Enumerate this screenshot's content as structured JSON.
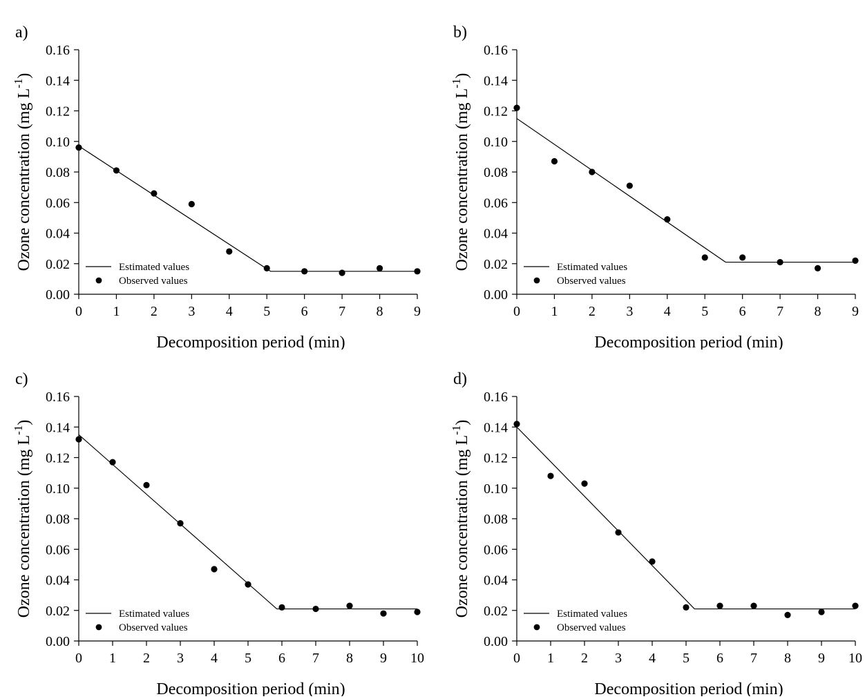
{
  "chart_data": [
    {
      "type": "line",
      "panel_label": "a)",
      "xlabel": "Decomposition period (min)",
      "ylabel": "Ozone concentration (mg L",
      "ylabel_exponent": "-1",
      "ylabel_suffix": ")",
      "xlim": [
        0,
        9
      ],
      "ylim": [
        0,
        0.16
      ],
      "xticks": [
        "0",
        "1",
        "2",
        "3",
        "4",
        "5",
        "6",
        "7",
        "8",
        "9"
      ],
      "yticks": [
        "0.00",
        "0.02",
        "0.04",
        "0.06",
        "0.08",
        "0.10",
        "0.12",
        "0.14",
        "0.16"
      ],
      "legend_position": "bottom-left",
      "series": [
        {
          "name": "Estimated values",
          "style": "line",
          "x": [
            0,
            5.1,
            9
          ],
          "y": [
            0.097,
            0.015,
            0.015
          ]
        },
        {
          "name": "Observed values",
          "style": "markers",
          "x": [
            0,
            1,
            2,
            3,
            4,
            5,
            6,
            7,
            8,
            9
          ],
          "y": [
            0.096,
            0.081,
            0.066,
            0.059,
            0.028,
            0.017,
            0.015,
            0.014,
            0.017,
            0.015
          ]
        }
      ]
    },
    {
      "type": "line",
      "panel_label": "b)",
      "xlabel": "Decomposition period (min)",
      "ylabel": "Ozone concentration (mg L",
      "ylabel_exponent": "-1",
      "ylabel_suffix": ")",
      "xlim": [
        0,
        9
      ],
      "ylim": [
        0,
        0.16
      ],
      "xticks": [
        "0",
        "1",
        "2",
        "3",
        "4",
        "5",
        "6",
        "7",
        "8",
        "9"
      ],
      "yticks": [
        "0.00",
        "0.02",
        "0.04",
        "0.06",
        "0.08",
        "0.10",
        "0.12",
        "0.14",
        "0.16"
      ],
      "legend_position": "bottom-left",
      "series": [
        {
          "name": "Estimated values",
          "style": "line",
          "x": [
            0,
            5.55,
            9
          ],
          "y": [
            0.115,
            0.021,
            0.021
          ]
        },
        {
          "name": "Observed values",
          "style": "markers",
          "x": [
            0,
            1,
            2,
            3,
            4,
            5,
            6,
            7,
            8,
            9
          ],
          "y": [
            0.122,
            0.087,
            0.08,
            0.071,
            0.049,
            0.024,
            0.024,
            0.021,
            0.017,
            0.022
          ]
        }
      ]
    },
    {
      "type": "line",
      "panel_label": "c)",
      "xlabel": "Decomposition period (min)",
      "ylabel": "Ozone concentration (mg L",
      "ylabel_exponent": "-1",
      "ylabel_suffix": ")",
      "xlim": [
        0,
        10
      ],
      "ylim": [
        0,
        0.16
      ],
      "xticks": [
        "0",
        "1",
        "2",
        "3",
        "4",
        "5",
        "6",
        "7",
        "8",
        "9",
        "10"
      ],
      "yticks": [
        "0.00",
        "0.02",
        "0.04",
        "0.06",
        "0.08",
        "0.10",
        "0.12",
        "0.14",
        "0.16"
      ],
      "legend_position": "bottom-left",
      "series": [
        {
          "name": "Estimated values",
          "style": "line",
          "x": [
            0,
            5.85,
            10
          ],
          "y": [
            0.135,
            0.021,
            0.021
          ]
        },
        {
          "name": "Observed values",
          "style": "markers",
          "x": [
            0,
            1,
            2,
            3,
            4,
            5,
            6,
            7,
            8,
            9,
            10
          ],
          "y": [
            0.132,
            0.117,
            0.102,
            0.077,
            0.047,
            0.037,
            0.022,
            0.021,
            0.023,
            0.018,
            0.019
          ]
        }
      ]
    },
    {
      "type": "line",
      "panel_label": "d)",
      "xlabel": "Decomposition period (min)",
      "ylabel": "Ozone concentration (mg L",
      "ylabel_exponent": "-1",
      "ylabel_suffix": ")",
      "xlim": [
        0,
        10
      ],
      "ylim": [
        0,
        0.16
      ],
      "xticks": [
        "0",
        "1",
        "2",
        "3",
        "4",
        "5",
        "6",
        "7",
        "8",
        "9",
        "10"
      ],
      "yticks": [
        "0.00",
        "0.02",
        "0.04",
        "0.06",
        "0.08",
        "0.10",
        "0.12",
        "0.14",
        "0.16"
      ],
      "legend_position": "bottom-left",
      "series": [
        {
          "name": "Estimated values",
          "style": "line",
          "x": [
            0,
            5.25,
            10
          ],
          "y": [
            0.14,
            0.021,
            0.021
          ]
        },
        {
          "name": "Observed values",
          "style": "markers",
          "x": [
            0,
            1,
            2,
            3,
            4,
            5,
            6,
            7,
            8,
            9,
            10
          ],
          "y": [
            0.142,
            0.108,
            0.103,
            0.071,
            0.052,
            0.022,
            0.023,
            0.023,
            0.017,
            0.019,
            0.023
          ]
        }
      ]
    }
  ]
}
